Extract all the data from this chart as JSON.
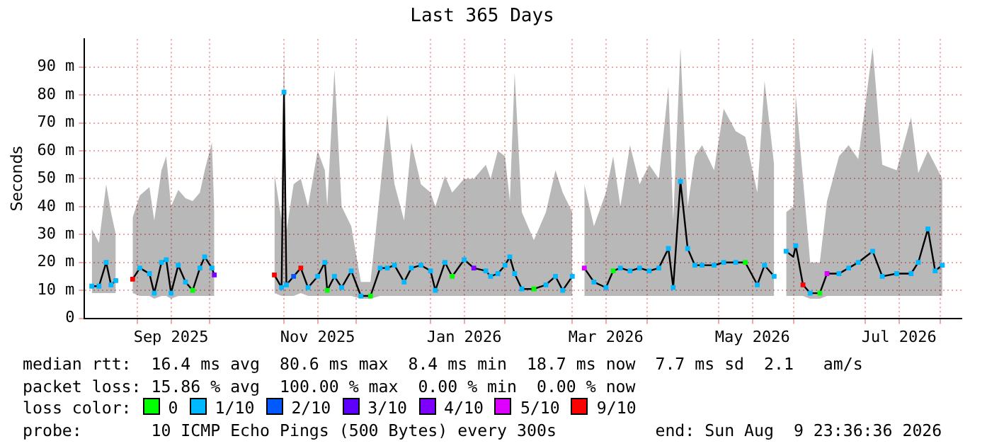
{
  "chart_data": {
    "type": "line",
    "title": "Last 365 Days",
    "ylabel": "Seconds",
    "legend_title": "loss color:",
    "legend": "bottom",
    "grid": true,
    "marker": "square",
    "xlim": [
      "2025-08-09T23:36",
      "2026-08-09T23:36"
    ],
    "xticks": [
      {
        "value": "2025-09-01",
        "label": null
      },
      {
        "value": "2025-09-15",
        "label": "Sep 2025"
      },
      {
        "value": "2025-10-01",
        "label": null
      },
      {
        "value": "2025-11-01",
        "label": null
      },
      {
        "value": "2025-11-15",
        "label": "Nov 2025"
      },
      {
        "value": "2025-12-01",
        "label": null
      },
      {
        "value": "2026-01-01",
        "label": null
      },
      {
        "value": "2026-01-15",
        "label": "Jan 2026"
      },
      {
        "value": "2026-02-01",
        "label": null
      },
      {
        "value": "2026-03-01",
        "label": null
      },
      {
        "value": "2026-03-15",
        "label": "Mar 2026"
      },
      {
        "value": "2026-04-01",
        "label": null
      },
      {
        "value": "2026-05-01",
        "label": null
      },
      {
        "value": "2026-05-15",
        "label": "May 2026"
      },
      {
        "value": "2026-06-01",
        "label": null
      },
      {
        "value": "2026-07-01",
        "label": null
      },
      {
        "value": "2026-07-15",
        "label": "Jul 2026"
      },
      {
        "value": "2026-08-01",
        "label": null
      }
    ],
    "ylim": [
      0,
      100
    ],
    "yticks": [
      0,
      {
        "value": 10,
        "label": "10 m"
      },
      {
        "value": 20,
        "label": "20 m"
      },
      {
        "value": 30,
        "label": "30 m"
      },
      {
        "value": 40,
        "label": "40 m"
      },
      {
        "value": 50,
        "label": "50 m"
      },
      {
        "value": 60,
        "label": "60 m"
      },
      {
        "value": 70,
        "label": "70 m"
      },
      {
        "value": 80,
        "label": "80 m"
      },
      {
        "value": 90,
        "label": "90 m"
      }
    ],
    "x": [
      "2025-08-13",
      "2025-08-16",
      "2025-08-19",
      "2025-08-21",
      "2025-08-23",
      "2025-08-26",
      "2025-08-30",
      "2025-09-02",
      "2025-09-06",
      "2025-09-08",
      "2025-09-11",
      "2025-09-13",
      "2025-09-15",
      "2025-09-18",
      "2025-09-21",
      "2025-09-24",
      "2025-09-27",
      "2025-09-29",
      "2025-10-02",
      "2025-10-03",
      "2025-10-16",
      "2025-10-28",
      "2025-10-31",
      "2025-11-01",
      "2025-11-02",
      "2025-11-05",
      "2025-11-08",
      "2025-11-11",
      "2025-11-15",
      "2025-11-18",
      "2025-11-19",
      "2025-11-22",
      "2025-11-25",
      "2025-11-29",
      "2025-12-03",
      "2025-12-07",
      "2025-12-11",
      "2025-12-14",
      "2025-12-17",
      "2025-12-21",
      "2025-12-24",
      "2025-12-28",
      "2026-01-01",
      "2026-01-03",
      "2026-01-07",
      "2026-01-10",
      "2026-01-15",
      "2026-01-19",
      "2026-01-24",
      "2026-01-26",
      "2026-01-29",
      "2026-02-01",
      "2026-02-03",
      "2026-02-05",
      "2026-02-08",
      "2026-02-13",
      "2026-02-18",
      "2026-02-22",
      "2026-02-25",
      "2026-03-01",
      "2026-03-03",
      "2026-03-06",
      "2026-03-10",
      "2026-03-15",
      "2026-03-18",
      "2026-03-21",
      "2026-03-25",
      "2026-03-29",
      "2026-04-02",
      "2026-04-06",
      "2026-04-10",
      "2026-04-12",
      "2026-04-15",
      "2026-04-18",
      "2026-04-21",
      "2026-04-24",
      "2026-04-29",
      "2026-05-03",
      "2026-05-08",
      "2026-05-12",
      "2026-05-17",
      "2026-05-20",
      "2026-05-24",
      "2026-05-27",
      "2026-05-29",
      "2026-06-01",
      "2026-06-02",
      "2026-06-05",
      "2026-06-08",
      "2026-06-12",
      "2026-06-15",
      "2026-06-20",
      "2026-06-24",
      "2026-06-28",
      "2026-07-04",
      "2026-07-08",
      "2026-07-14",
      "2026-07-20",
      "2026-07-23",
      "2026-07-27",
      "2026-07-30",
      "2026-08-02"
    ],
    "series": [
      {
        "color": "#000000",
        "marker": "none",
        "values": [
          11.5,
          11.5,
          20,
          12,
          13.5,
          null,
          14,
          18,
          16,
          9,
          20,
          21,
          9,
          19,
          13,
          10,
          18,
          22,
          18,
          15.5,
          null,
          15.5,
          11,
          81,
          12,
          15,
          18,
          11,
          15,
          20,
          10,
          15,
          11,
          17,
          8,
          8,
          18,
          18,
          19,
          13,
          18,
          19,
          17,
          10,
          20,
          15,
          21,
          18,
          17,
          15,
          16,
          19,
          22,
          16,
          10.5,
          10.5,
          12,
          15,
          10,
          15,
          null,
          18,
          13,
          11,
          17,
          18,
          17,
          18,
          17,
          18,
          25,
          11,
          49,
          25,
          19,
          19,
          19,
          20,
          20,
          20,
          12,
          19,
          15,
          null,
          24,
          22,
          26,
          12,
          9,
          9,
          16,
          16,
          18,
          20,
          24,
          15,
          16,
          16,
          20,
          32,
          17,
          19
        ],
        "lower": [
          9,
          9,
          9,
          9,
          9,
          null,
          9,
          8,
          8,
          7,
          8,
          8,
          7,
          8,
          8,
          8,
          8,
          8,
          8,
          8,
          null,
          9,
          8,
          8,
          8,
          8,
          9,
          8,
          8,
          8,
          8,
          8,
          8,
          8,
          7,
          7,
          8,
          8,
          8,
          8,
          8,
          8,
          8,
          8,
          8,
          8,
          8,
          8,
          8,
          8,
          8,
          8,
          8,
          8,
          8,
          8,
          8,
          8,
          8,
          8,
          null,
          8,
          8,
          8,
          8,
          8,
          8,
          8,
          8,
          8,
          8,
          8,
          8,
          8,
          8,
          8,
          8,
          8,
          8,
          8,
          8,
          8,
          8,
          null,
          8,
          8,
          8,
          8,
          7,
          7,
          8,
          8,
          8,
          8,
          8,
          8,
          8,
          8,
          8,
          8,
          8,
          8
        ],
        "upper": [
          32,
          27,
          48,
          38,
          30,
          null,
          36,
          44,
          47,
          35,
          53,
          58,
          40,
          46,
          43,
          42,
          45,
          53,
          63,
          38,
          null,
          52,
          35,
          97,
          31,
          48,
          50,
          40,
          60,
          53,
          40,
          89,
          40,
          33,
          13,
          13,
          46,
          73,
          48,
          35,
          63,
          48,
          45,
          40,
          51,
          45,
          50,
          50,
          55,
          50,
          60,
          58,
          42,
          88,
          38,
          28,
          38,
          53,
          45,
          38,
          null,
          48,
          33,
          45,
          58,
          40,
          62,
          48,
          55,
          50,
          83,
          35,
          97,
          40,
          58,
          62,
          53,
          75,
          67,
          65,
          45,
          85,
          55,
          null,
          38,
          40,
          80,
          50,
          20,
          20,
          42,
          58,
          62,
          57,
          97,
          55,
          53,
          72,
          52,
          60,
          55,
          50
        ]
      },
      {
        "type": "scatter",
        "name": "0",
        "color": "#00ff00",
        "x": [
          "2025-09-24",
          "2025-11-19",
          "2025-12-07",
          "2026-01-10",
          "2026-02-13",
          "2026-03-18",
          "2026-05-12",
          "2026-06-12"
        ],
        "values": [
          10,
          10,
          8,
          15,
          10.5,
          17,
          20,
          9
        ]
      },
      {
        "type": "scatter",
        "name": "1/10",
        "color": "#00b8ff",
        "x": [
          "2025-08-13",
          "2025-08-16",
          "2025-08-19",
          "2025-08-21",
          "2025-08-23",
          "2025-09-02",
          "2025-09-06",
          "2025-09-08",
          "2025-09-11",
          "2025-09-13",
          "2025-09-15",
          "2025-09-18",
          "2025-09-21",
          "2025-09-27",
          "2025-09-29",
          "2025-10-02",
          "2025-10-31",
          "2025-11-01",
          "2025-11-02",
          "2025-11-11",
          "2025-11-15",
          "2025-11-18",
          "2025-11-22",
          "2025-11-25",
          "2025-11-29",
          "2025-12-03",
          "2025-12-11",
          "2025-12-14",
          "2025-12-17",
          "2025-12-21",
          "2025-12-24",
          "2025-12-28",
          "2026-01-01",
          "2026-01-03",
          "2026-01-07",
          "2026-01-15",
          "2026-01-24",
          "2026-01-26",
          "2026-01-29",
          "2026-02-01",
          "2026-02-03",
          "2026-02-05",
          "2026-02-08",
          "2026-02-18",
          "2026-02-22",
          "2026-02-25",
          "2026-03-01",
          "2026-03-10",
          "2026-03-15",
          "2026-03-21",
          "2026-03-25",
          "2026-03-29",
          "2026-04-02",
          "2026-04-06",
          "2026-04-10",
          "2026-04-12",
          "2026-04-15",
          "2026-04-18",
          "2026-04-21",
          "2026-04-24",
          "2026-04-29",
          "2026-05-03",
          "2026-05-08",
          "2026-05-17",
          "2026-05-20",
          "2026-05-24",
          "2026-05-29",
          "2026-06-02",
          "2026-06-08",
          "2026-06-20",
          "2026-06-24",
          "2026-06-28",
          "2026-07-04",
          "2026-07-08",
          "2026-07-14",
          "2026-07-20",
          "2026-07-23",
          "2026-07-27",
          "2026-07-30",
          "2026-08-02"
        ],
        "values": [
          11.5,
          11.5,
          20,
          12,
          13.5,
          18,
          16,
          9,
          20,
          21,
          9,
          19,
          13,
          18,
          22,
          18,
          11,
          81,
          12,
          11,
          15,
          20,
          15,
          11,
          17,
          8,
          18,
          18,
          19,
          13,
          18,
          19,
          17,
          10,
          20,
          21,
          17,
          15,
          16,
          19,
          22,
          16,
          10.5,
          12,
          15,
          10,
          15,
          13,
          11,
          18,
          17,
          18,
          17,
          18,
          25,
          11,
          49,
          25,
          19,
          19,
          19,
          20,
          20,
          12,
          19,
          15,
          24,
          26,
          9,
          16,
          18,
          20,
          24,
          15,
          16,
          16,
          20,
          32,
          17,
          19
        ]
      },
      {
        "type": "scatter",
        "name": "2/10",
        "color": "#0059ff",
        "x": [
          "2025-11-05"
        ],
        "values": [
          15
        ]
      },
      {
        "type": "scatter",
        "name": "3/10",
        "color": "#5e00ff",
        "values": [
          null,
          null,
          null,
          null,
          null,
          null,
          null,
          null,
          null,
          null,
          null,
          null,
          null,
          null,
          null,
          null,
          null,
          null,
          null,
          null,
          null,
          null,
          null,
          null,
          null,
          null,
          null,
          null,
          null,
          null,
          null,
          null,
          null,
          null,
          null,
          null,
          null,
          null,
          null,
          null,
          null,
          null,
          null,
          null,
          null,
          null,
          null,
          null,
          null,
          null,
          null,
          null,
          null,
          null,
          null,
          null,
          null,
          null,
          null,
          null,
          null,
          null,
          null,
          null,
          null,
          null,
          null,
          null,
          null,
          null,
          null,
          null,
          null,
          null,
          null,
          null,
          null,
          null,
          null,
          null,
          null,
          null,
          null,
          null,
          null,
          null,
          null,
          null,
          null,
          null,
          null,
          null,
          null,
          null,
          null,
          null,
          null,
          null,
          null,
          null,
          null,
          null
        ]
      },
      {
        "type": "scatter",
        "name": "4/10",
        "color": "#7e00ff",
        "x": [
          "2025-10-03",
          "2026-01-19"
        ],
        "values": [
          15.5,
          18
        ]
      },
      {
        "type": "scatter",
        "name": "5/10",
        "color": "#dd00ff",
        "x": [
          "2026-03-06",
          "2026-06-15"
        ],
        "values": [
          18,
          16
        ]
      },
      {
        "type": "scatter",
        "name": "9/10",
        "color": "#ff0000",
        "x": [
          "2025-08-30",
          "2025-10-28",
          "2025-11-08",
          "2026-06-05"
        ],
        "values": [
          14,
          15.5,
          18,
          12
        ]
      }
    ],
    "annotations": [
      "median rtt:  16.4 ms avg  80.6 ms max  8.4 ms min  18.7 ms now  7.7 ms sd  2.1   am/s",
      "packet loss: 15.86 % avg  100.00 % max  0.00 % min  0.00 % now",
      "probe:       10 ICMP Echo Pings (500 Bytes) every 300s          end: Sun Aug  9 23:36:36 2026"
    ]
  }
}
